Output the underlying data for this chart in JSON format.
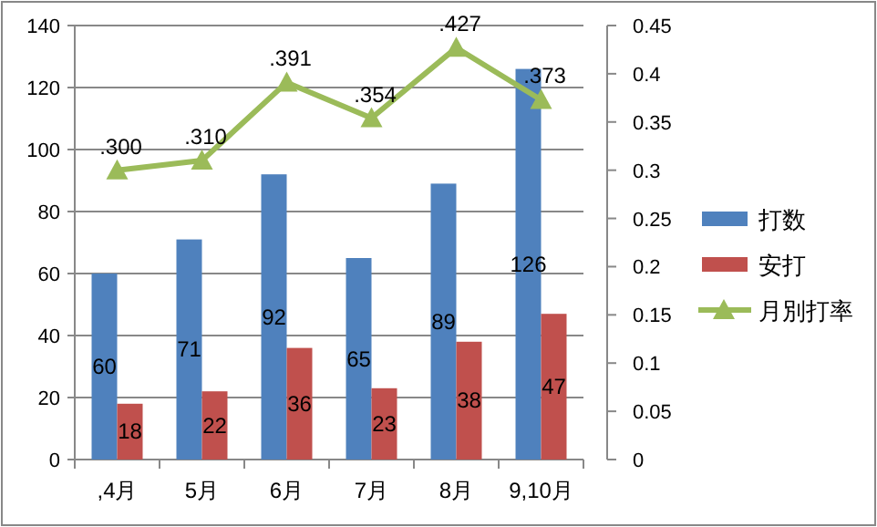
{
  "chart_data": {
    "type": "bar",
    "categories": [
      ",4月",
      "5月",
      "6月",
      "7月",
      "8月",
      "9,10月"
    ],
    "series": [
      {
        "name": "打数",
        "color": "#4f81bd",
        "values": [
          60,
          71,
          92,
          65,
          89,
          126
        ],
        "value_labels": [
          "60",
          "71",
          "92",
          "65",
          "89",
          "126"
        ]
      },
      {
        "name": "安打",
        "color": "#c0504d",
        "values": [
          18,
          22,
          36,
          23,
          38,
          47
        ],
        "value_labels": [
          "18",
          "22",
          "36",
          "23",
          "38",
          "47"
        ]
      },
      {
        "name": "月別打率",
        "type": "line",
        "axis": "y2",
        "marker": "triangle",
        "color": "#9bbb59",
        "values": [
          0.3,
          0.31,
          0.391,
          0.354,
          0.427,
          0.373
        ],
        "value_labels": [
          ".300",
          ".310",
          ".391",
          ".354",
          ".427",
          ".373"
        ]
      }
    ],
    "ylim": [
      0,
      140
    ],
    "yticks": [
      0,
      20,
      40,
      60,
      80,
      100,
      120,
      140
    ],
    "y2lim": [
      0,
      0.45
    ],
    "y2ticks": [
      0,
      0.05,
      0.1,
      0.15,
      0.2,
      0.25,
      0.3,
      0.35,
      0.4,
      0.45
    ],
    "grid": "y",
    "legend": "right"
  }
}
